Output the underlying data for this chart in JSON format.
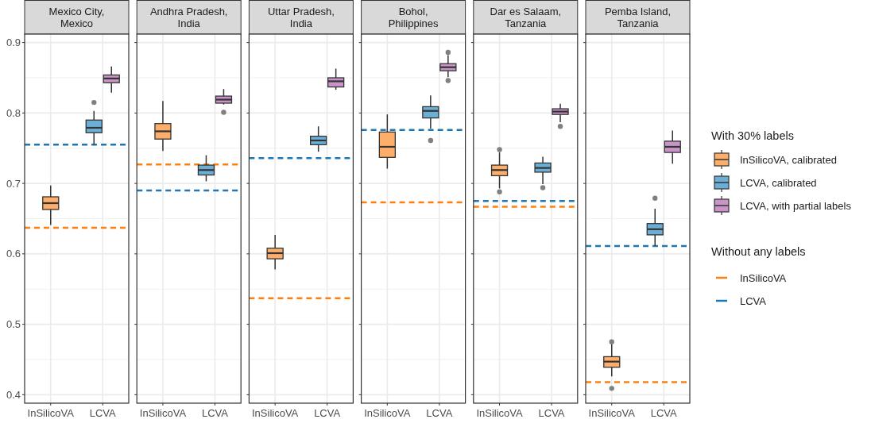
{
  "chart_data": [
    {
      "type": "box",
      "title": "Mexico City,\nMexico",
      "categories": [
        "InSilicoVA",
        "LCVA"
      ],
      "ylim": [
        0.388,
        0.912
      ],
      "yticks": [
        0.4,
        0.5,
        0.6,
        0.7,
        0.8,
        0.9
      ],
      "grid": true,
      "legend": false,
      "series": [
        {
          "color": "#fdae6b",
          "boxes": [
            {
              "low": 0.641,
              "q1": 0.663,
              "median": 0.672,
              "q3": 0.681,
              "high": 0.697
            },
            null
          ]
        },
        {
          "color": "#6baed6",
          "boxes": [
            null,
            {
              "low": 0.755,
              "q1": 0.772,
              "median": 0.779,
              "q3": 0.79,
              "high": 0.803,
              "outliers": [
                0.815
              ]
            }
          ]
        },
        {
          "color": "#c994c7",
          "boxes": [
            null,
            {
              "low": 0.829,
              "q1": 0.843,
              "median": 0.849,
              "q3": 0.854,
              "high": 0.866
            }
          ]
        }
      ],
      "ref_lines": [
        {
          "axis": "y",
          "value": 0.637,
          "color": "#ff7f0e",
          "line_style": "dashed"
        },
        {
          "axis": "y",
          "value": 0.755,
          "color": "#1f78b4",
          "line_style": "dashed"
        }
      ]
    },
    {
      "type": "box",
      "title": "Andhra Pradesh,\nIndia",
      "categories": [
        "InSilicoVA",
        "LCVA"
      ],
      "ylim": [
        0.388,
        0.912
      ],
      "yticks": [
        0.4,
        0.5,
        0.6,
        0.7,
        0.8,
        0.9
      ],
      "grid": true,
      "legend": false,
      "tick_labels": "x",
      "series": [
        {
          "color": "#fdae6b",
          "boxes": [
            {
              "low": 0.746,
              "q1": 0.763,
              "median": 0.774,
              "q3": 0.785,
              "high": 0.817
            },
            null
          ]
        },
        {
          "color": "#6baed6",
          "boxes": [
            null,
            {
              "low": 0.703,
              "q1": 0.712,
              "median": 0.719,
              "q3": 0.726,
              "high": 0.74
            }
          ]
        },
        {
          "color": "#c994c7",
          "boxes": [
            null,
            {
              "low": 0.812,
              "q1": 0.814,
              "median": 0.819,
              "q3": 0.824,
              "high": 0.834,
              "outliers": [
                0.801
              ]
            }
          ]
        }
      ],
      "ref_lines": [
        {
          "axis": "y",
          "value": 0.727,
          "color": "#ff7f0e",
          "line_style": "dashed"
        },
        {
          "axis": "y",
          "value": 0.69,
          "color": "#1f78b4",
          "line_style": "dashed"
        }
      ]
    },
    {
      "type": "box",
      "title": "Uttar Pradesh,\nIndia",
      "categories": [
        "InSilicoVA",
        "LCVA"
      ],
      "ylim": [
        0.388,
        0.912
      ],
      "yticks": [
        0.4,
        0.5,
        0.6,
        0.7,
        0.8,
        0.9
      ],
      "grid": true,
      "legend": false,
      "tick_labels": "x",
      "series": [
        {
          "color": "#fdae6b",
          "boxes": [
            {
              "low": 0.578,
              "q1": 0.593,
              "median": 0.601,
              "q3": 0.608,
              "high": 0.627
            },
            null
          ]
        },
        {
          "color": "#6baed6",
          "boxes": [
            null,
            {
              "low": 0.745,
              "q1": 0.755,
              "median": 0.761,
              "q3": 0.767,
              "high": 0.781
            }
          ]
        },
        {
          "color": "#c994c7",
          "boxes": [
            null,
            {
              "low": 0.833,
              "q1": 0.837,
              "median": 0.845,
              "q3": 0.85,
              "high": 0.863
            }
          ]
        }
      ],
      "ref_lines": [
        {
          "axis": "y",
          "value": 0.537,
          "color": "#ff7f0e",
          "line_style": "dashed"
        },
        {
          "axis": "y",
          "value": 0.736,
          "color": "#1f78b4",
          "line_style": "dashed"
        }
      ]
    },
    {
      "type": "box",
      "title": "Bohol,\nPhilippines",
      "categories": [
        "InSilicoVA",
        "LCVA"
      ],
      "ylim": [
        0.388,
        0.912
      ],
      "yticks": [
        0.4,
        0.5,
        0.6,
        0.7,
        0.8,
        0.9
      ],
      "grid": true,
      "legend": false,
      "tick_labels": "x",
      "series": [
        {
          "color": "#fdae6b",
          "boxes": [
            {
              "low": 0.721,
              "q1": 0.737,
              "median": 0.752,
              "q3": 0.773,
              "high": 0.798
            },
            null
          ]
        },
        {
          "color": "#6baed6",
          "boxes": [
            null,
            {
              "low": 0.778,
              "q1": 0.793,
              "median": 0.803,
              "q3": 0.809,
              "high": 0.825,
              "outliers": [
                0.761
              ]
            }
          ]
        },
        {
          "color": "#c994c7",
          "boxes": [
            null,
            {
              "low": 0.851,
              "q1": 0.86,
              "median": 0.865,
              "q3": 0.87,
              "high": 0.882,
              "outliers": [
                0.886,
                0.846
              ]
            }
          ]
        }
      ],
      "ref_lines": [
        {
          "axis": "y",
          "value": 0.673,
          "color": "#ff7f0e",
          "line_style": "dashed"
        },
        {
          "axis": "y",
          "value": 0.776,
          "color": "#1f78b4",
          "line_style": "dashed"
        }
      ]
    },
    {
      "type": "box",
      "title": "Dar es Salaam,\nTanzania",
      "categories": [
        "InSilicoVA",
        "LCVA"
      ],
      "ylim": [
        0.388,
        0.912
      ],
      "yticks": [
        0.4,
        0.5,
        0.6,
        0.7,
        0.8,
        0.9
      ],
      "grid": true,
      "legend": false,
      "tick_labels": "x",
      "series": [
        {
          "color": "#fdae6b",
          "boxes": [
            {
              "low": 0.693,
              "q1": 0.711,
              "median": 0.719,
              "q3": 0.726,
              "high": 0.744,
              "outliers": [
                0.748,
                0.688
              ]
            },
            null
          ]
        },
        {
          "color": "#6baed6",
          "boxes": [
            null,
            {
              "low": 0.699,
              "q1": 0.716,
              "median": 0.722,
              "q3": 0.729,
              "high": 0.738,
              "outliers": [
                0.694
              ]
            }
          ]
        },
        {
          "color": "#c994c7",
          "boxes": [
            null,
            {
              "low": 0.787,
              "q1": 0.798,
              "median": 0.802,
              "q3": 0.806,
              "high": 0.813,
              "outliers": [
                0.781
              ]
            }
          ]
        }
      ],
      "ref_lines": [
        {
          "axis": "y",
          "value": 0.667,
          "color": "#ff7f0e",
          "line_style": "dashed"
        },
        {
          "axis": "y",
          "value": 0.675,
          "color": "#1f78b4",
          "line_style": "dashed"
        }
      ]
    },
    {
      "type": "box",
      "title": "Pemba Island,\nTanzania",
      "categories": [
        "InSilicoVA",
        "LCVA"
      ],
      "ylim": [
        0.388,
        0.912
      ],
      "yticks": [
        0.4,
        0.5,
        0.6,
        0.7,
        0.8,
        0.9
      ],
      "grid": true,
      "legend": "right",
      "tick_labels": "x",
      "legend_title": "With 30% labels",
      "annotations": [
        "Without any labels"
      ],
      "series": [
        {
          "name": "InSilicoVA, calibrated",
          "color": "#fdae6b",
          "boxes": [
            {
              "low": 0.426,
              "q1": 0.439,
              "median": 0.447,
              "q3": 0.454,
              "high": 0.472,
              "outliers": [
                0.475,
                0.409
              ]
            },
            null
          ]
        },
        {
          "name": "LCVA, calibrated",
          "color": "#6baed6",
          "boxes": [
            null,
            {
              "low": 0.611,
              "q1": 0.627,
              "median": 0.635,
              "q3": 0.643,
              "high": 0.664,
              "outliers": [
                0.679
              ]
            }
          ]
        },
        {
          "name": "LCVA, with partial labels",
          "color": "#c994c7",
          "boxes": [
            null,
            {
              "low": 0.728,
              "q1": 0.744,
              "median": 0.752,
              "q3": 0.76,
              "high": 0.775
            }
          ]
        }
      ],
      "ref_lines": [
        {
          "axis": "y",
          "value": 0.418,
          "color": "#ff7f0e",
          "line_style": "dashed",
          "label": "InSilicoVA"
        },
        {
          "axis": "y",
          "value": 0.611,
          "color": "#1f78b4",
          "line_style": "dashed",
          "label": "LCVA"
        }
      ]
    }
  ]
}
